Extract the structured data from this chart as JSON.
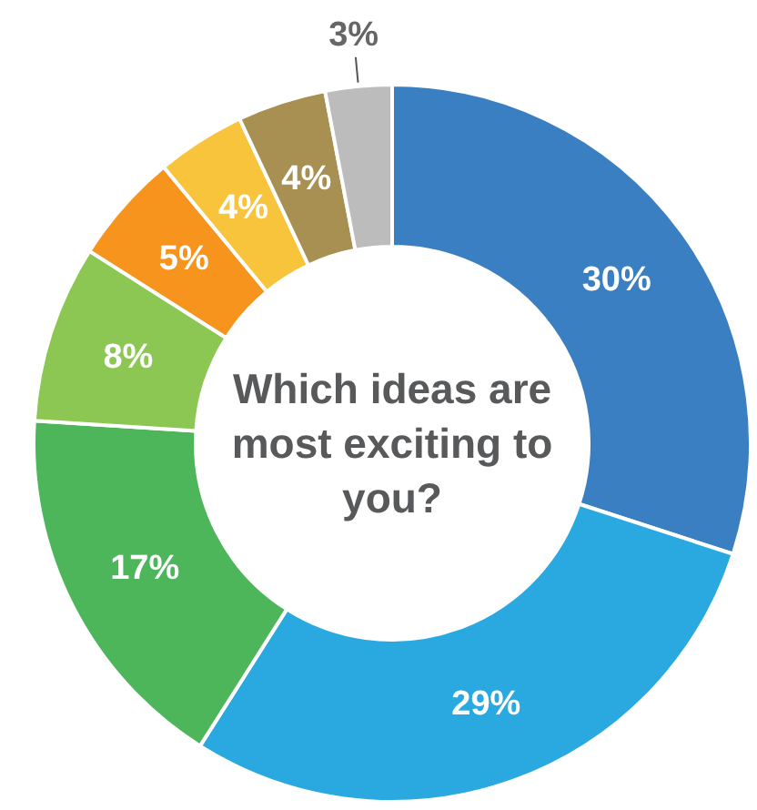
{
  "chart_data": {
    "type": "donut",
    "title": "Which ideas are most exciting to you?",
    "categories": [
      null,
      null,
      null,
      null,
      null,
      null,
      null,
      null
    ],
    "values": [
      30,
      29,
      17,
      8,
      5,
      4,
      4,
      3
    ],
    "value_labels": [
      "30%",
      "29%",
      "17%",
      "8%",
      "5%",
      "4%",
      "4%",
      "3%"
    ],
    "colors": [
      "#3a7fc1",
      "#29a9e0",
      "#4db55a",
      "#8cc653",
      "#f7941d",
      "#f7c43c",
      "#a88f52",
      "#bcbcbc"
    ]
  }
}
